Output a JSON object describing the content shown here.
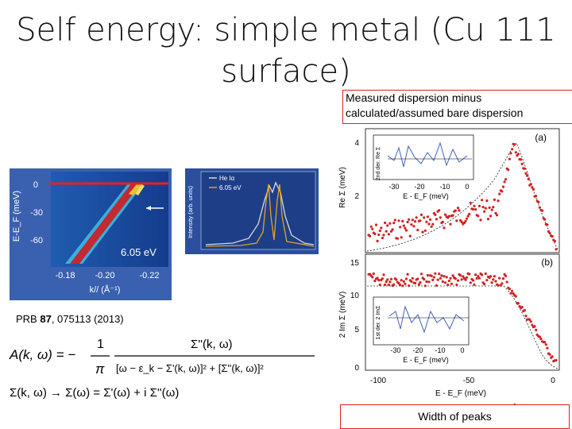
{
  "slide": {
    "title_line1": "Self energy: simple metal (Cu 111",
    "title_line2": "surface)",
    "callout_top_line1": "Measured dispersion minus",
    "callout_top_line2": "calculated/assumed bare dispersion",
    "callout_bottom": "Width of peaks",
    "reference_prefix": "PRB ",
    "reference_volume": "87",
    "reference_suffix": ", 075113 (2013)"
  },
  "arpes": {
    "ylabel": "E-E_F (meV)",
    "yticks": [
      "0",
      "-30",
      "-60"
    ],
    "xticks": [
      "-0.18",
      "-0.20",
      "-0.22"
    ],
    "xlabel": "k// (Å⁻¹)",
    "photon_label": "6.05 eV",
    "colors": {
      "red_line": "#e82020",
      "band": "#d02a2a",
      "bg": "#1a3a8a"
    }
  },
  "edc": {
    "ylabel": "Intensity (arb. units)",
    "legend_he": "He Iα",
    "legend_laser": "6.05 eV",
    "colors": {
      "he": "#d9d9d9",
      "laser": "#e8a020"
    }
  },
  "graph": {
    "panel_a_label": "(a)",
    "panel_b_label": "(b)",
    "a_ylabel": "Re Σ (meV)",
    "a_yticks": [
      "4",
      "2"
    ],
    "b_ylabel": "2 Im Σ (meV)",
    "b_yticks": [
      "15",
      "10",
      "5",
      "0"
    ],
    "xlabel": "E - E_F (meV)",
    "xticks": [
      "-100",
      "-50",
      "0"
    ],
    "inset_a_xlabel": "E - E_F (meV)",
    "inset_a_ylabel": "2nd der. Re Σ",
    "inset_b_xlabel": "E - E_F (meV)",
    "inset_b_ylabel": "1st der. 2 ImΣ",
    "inset_xticks": [
      "-30",
      "-20",
      "-10",
      "0"
    ],
    "colors": {
      "points": "#d42020",
      "inset_line": "#4060c0"
    }
  },
  "formula": {
    "lhs": "A(k, ω) = −",
    "one": "1",
    "pi": "π",
    "numerator": "Σ''(k, ω)",
    "denominator": "[ω − ε_k − Σ'(k, ω)]² + [Σ''(k, ω)]²",
    "line2": "Σ(k, ω) → Σ(ω) = Σ'(ω) + i Σ''(ω)"
  }
}
